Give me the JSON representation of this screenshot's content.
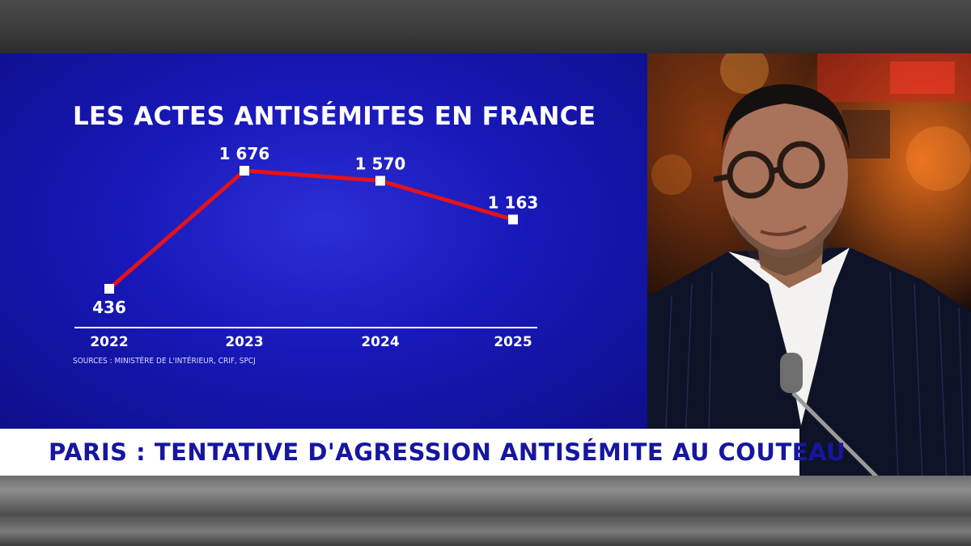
{
  "chart_data": {
    "type": "line",
    "title": "LES ACTES ANTISÉMITES EN FRANCE",
    "categories": [
      "2022",
      "2023",
      "2024",
      "2025"
    ],
    "values": [
      436,
      1676,
      1570,
      1163
    ],
    "value_labels": [
      "436",
      "1 676",
      "1 570",
      "1 163"
    ],
    "ylim": [
      300,
      1800
    ],
    "grid": false,
    "legend": "none",
    "source": "SOURCES : MINISTÈRE DE L'INTÉRIEUR, CRIF, SPCJ",
    "colors": {
      "line": "#e3121b",
      "marker": "#ffffff",
      "text": "#ffffff",
      "axis": "#ffffff",
      "background": "#1a1abf"
    }
  },
  "headline": "PARIS : TENTATIVE D'AGRESSION ANTISÉMITE AU COUTEAU",
  "colors": {
    "headline_text": "#1616a0",
    "lower_third_bg": "#ffffff"
  }
}
